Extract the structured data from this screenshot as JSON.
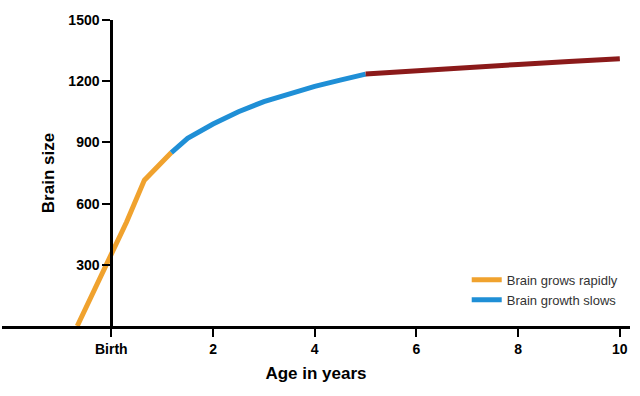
{
  "chart_data": {
    "type": "line",
    "x_label": "Age in years",
    "y_label": "Brain size",
    "series": [
      {
        "name": "Brain grows rapidly",
        "color": "#f0a22e",
        "x": [
          -0.67,
          -0.3,
          0,
          0.3,
          0.65,
          1.18
        ],
        "values": [
          0,
          190,
          345,
          510,
          715,
          850
        ]
      },
      {
        "name": "Brain growth slows",
        "color": "#1f8fd6",
        "x": [
          1.18,
          1.5,
          2,
          2.5,
          3,
          3.5,
          4,
          4.5,
          5
        ],
        "values": [
          850,
          920,
          990,
          1050,
          1100,
          1140,
          1175,
          1205,
          1235
        ]
      },
      {
        "color": "#8b1a1a",
        "x": [
          5,
          6,
          7,
          8,
          9,
          10
        ],
        "values": [
          1235,
          1252,
          1268,
          1282,
          1296,
          1310
        ]
      }
    ],
    "xlim": [
      -2.15,
      10.2
    ],
    "xticks": [
      {
        "value": 0,
        "label": "Birth"
      },
      2,
      4,
      6,
      8,
      10
    ],
    "ylim": [
      0,
      1500
    ],
    "yticks": [
      300,
      600,
      900,
      1200,
      1500
    ],
    "grid": false,
    "legend": "lower right"
  }
}
